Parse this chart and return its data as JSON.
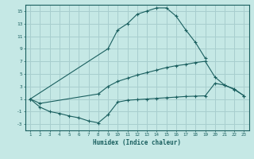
{
  "xlabel": "Humidex (Indice chaleur)",
  "background_color": "#c5e8e5",
  "grid_color": "#a8cece",
  "line_color": "#1a5f5f",
  "ylim": [
    -4,
    16
  ],
  "xlim": [
    0.5,
    23.5
  ],
  "yticks": [
    -3,
    -1,
    1,
    3,
    5,
    7,
    9,
    11,
    13,
    15
  ],
  "curve_top_x": [
    1,
    9,
    10,
    11,
    12,
    13,
    14,
    15,
    16,
    17,
    18,
    19
  ],
  "curve_top_y": [
    1,
    9,
    12,
    13,
    14.5,
    15,
    15.5,
    15.5,
    14.2,
    12,
    10,
    7.5
  ],
  "curve_mid_x": [
    1,
    2,
    8,
    9,
    10,
    11,
    12,
    13,
    14,
    15,
    16,
    17,
    18,
    19,
    20,
    21,
    22,
    23
  ],
  "curve_mid_y": [
    1,
    0.3,
    1.8,
    3.0,
    3.8,
    4.3,
    4.8,
    5.2,
    5.6,
    6.0,
    6.3,
    6.5,
    6.8,
    7.0,
    4.5,
    3.2,
    2.6,
    1.5
  ],
  "curve_bot_x": [
    1,
    2,
    3,
    4,
    5,
    6,
    7,
    8,
    9,
    10,
    11,
    12,
    13,
    14,
    15,
    16,
    17,
    18,
    19,
    20,
    21,
    22,
    23
  ],
  "curve_bot_y": [
    1,
    -0.3,
    -1.0,
    -1.3,
    -1.7,
    -2.0,
    -2.5,
    -2.8,
    -1.5,
    0.5,
    0.8,
    0.9,
    1.0,
    1.1,
    1.2,
    1.3,
    1.4,
    1.45,
    1.5,
    3.5,
    3.2,
    2.5,
    1.5
  ]
}
